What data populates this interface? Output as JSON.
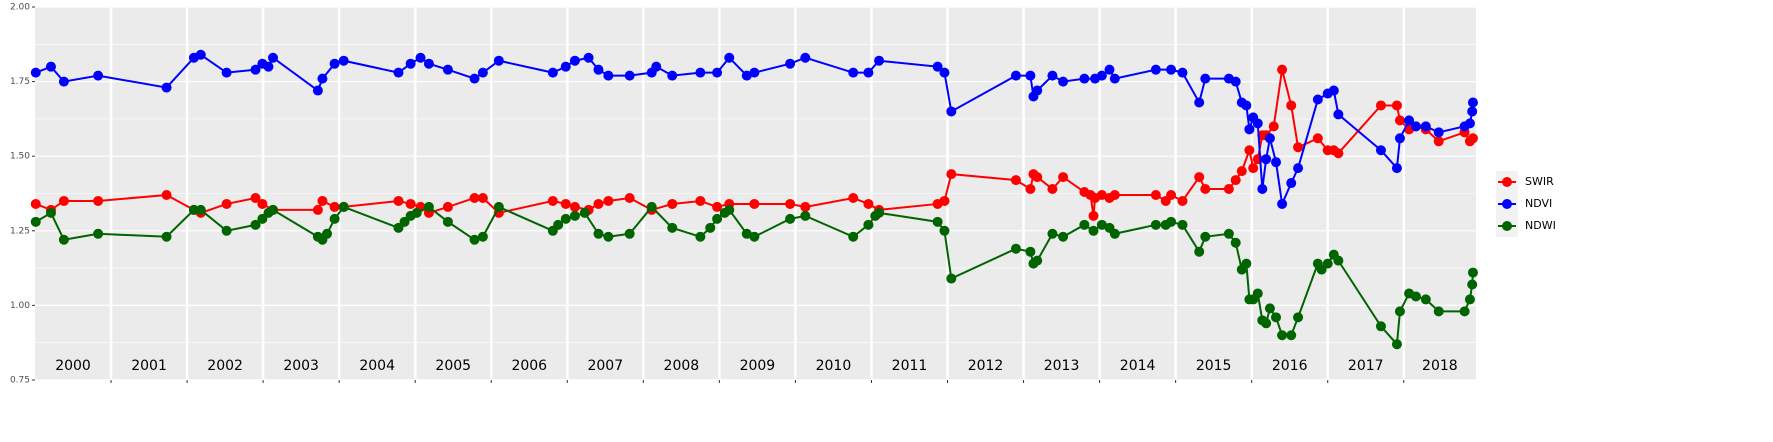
{
  "chart_data": {
    "type": "line",
    "categories": [
      "2000",
      "2001",
      "2002",
      "2003",
      "2004",
      "2005",
      "2006",
      "2007",
      "2008",
      "2009",
      "2010",
      "2011",
      "2012",
      "2013",
      "2014",
      "2015",
      "2016",
      "2017",
      "2018"
    ],
    "xlim": [
      2000,
      2018.95
    ],
    "ylim": [
      0.75,
      2.0
    ],
    "yticks": [
      0.75,
      {
        "value": 1.0,
        "label": "1.00"
      },
      1.25,
      {
        "value": 1.5,
        "label": "1.50"
      },
      1.75,
      {
        "value": 2.0,
        "label": "2.00"
      }
    ],
    "grid": true,
    "legend": "right",
    "series": [
      {
        "name": "SWIR",
        "color": "#ff0000",
        "x": [
          2000.01,
          2000.21,
          2000.38,
          2000.83,
          2001.73,
          2002.09,
          2002.18,
          2002.52,
          2002.9,
          2002.99,
          2003.13,
          2003.72,
          2003.78,
          2003.94,
          2004.06,
          2004.78,
          2004.94,
          2005.07,
          2005.18,
          2005.43,
          2005.78,
          2005.89,
          2006.1,
          2006.81,
          2006.98,
          2007.1,
          2007.28,
          2007.41,
          2007.54,
          2007.82,
          2008.11,
          2008.38,
          2008.75,
          2008.97,
          2009.13,
          2009.46,
          2009.93,
          2010.13,
          2010.76,
          2010.96,
          2011.1,
          2011.87,
          2011.96,
          2012.05,
          2012.9,
          2013.09,
          2013.13,
          2013.18,
          2013.38,
          2013.52,
          2013.8,
          2013.88,
          2013.92,
          2013.94,
          2014.03,
          2014.13,
          2014.2,
          2014.74,
          2014.87,
          2014.94,
          2015.09,
          2015.31,
          2015.39,
          2015.7,
          2015.79,
          2015.87,
          2015.97,
          2016.02,
          2016.08,
          2016.14,
          2016.19,
          2016.29,
          2016.4,
          2016.52,
          2016.61,
          2016.87,
          2017.0,
          2017.08,
          2017.14,
          2017.7,
          2017.91,
          2017.95,
          2018.07,
          2018.16,
          2018.29,
          2018.46,
          2018.8,
          2018.87,
          2018.91
        ],
        "values": [
          1.34,
          1.32,
          1.35,
          1.35,
          1.37,
          1.32,
          1.31,
          1.34,
          1.36,
          1.34,
          1.32,
          1.32,
          1.35,
          1.33,
          1.33,
          1.35,
          1.34,
          1.33,
          1.31,
          1.33,
          1.36,
          1.36,
          1.31,
          1.35,
          1.34,
          1.33,
          1.32,
          1.34,
          1.35,
          1.36,
          1.32,
          1.34,
          1.35,
          1.33,
          1.34,
          1.34,
          1.34,
          1.33,
          1.36,
          1.34,
          1.32,
          1.34,
          1.35,
          1.44,
          1.42,
          1.39,
          1.44,
          1.43,
          1.39,
          1.43,
          1.38,
          1.37,
          1.3,
          1.36,
          1.37,
          1.36,
          1.37,
          1.37,
          1.35,
          1.37,
          1.35,
          1.43,
          1.39,
          1.39,
          1.42,
          1.45,
          1.52,
          1.46,
          1.49,
          1.57,
          1.57,
          1.6,
          1.79,
          1.67,
          1.53,
          1.56,
          1.52,
          1.52,
          1.51,
          1.67,
          1.67,
          1.62,
          1.59,
          1.6,
          1.59,
          1.55,
          1.58,
          1.55,
          1.56
        ]
      },
      {
        "name": "NDVI",
        "color": "#0000ff",
        "x": [
          2000.01,
          2000.21,
          2000.38,
          2000.83,
          2001.73,
          2002.09,
          2002.18,
          2002.52,
          2002.9,
          2002.99,
          2003.07,
          2003.13,
          2003.72,
          2003.78,
          2003.94,
          2004.06,
          2004.78,
          2004.94,
          2005.07,
          2005.18,
          2005.43,
          2005.78,
          2005.89,
          2006.1,
          2006.81,
          2006.98,
          2007.1,
          2007.28,
          2007.41,
          2007.54,
          2007.82,
          2008.11,
          2008.17,
          2008.38,
          2008.75,
          2008.97,
          2009.13,
          2009.36,
          2009.46,
          2009.93,
          2010.13,
          2010.76,
          2010.96,
          2011.1,
          2011.87,
          2011.96,
          2012.05,
          2012.9,
          2013.09,
          2013.13,
          2013.18,
          2013.38,
          2013.52,
          2013.8,
          2013.94,
          2014.03,
          2014.13,
          2014.2,
          2014.74,
          2014.94,
          2015.09,
          2015.31,
          2015.39,
          2015.7,
          2015.79,
          2015.87,
          2015.93,
          2015.97,
          2016.02,
          2016.08,
          2016.14,
          2016.19,
          2016.24,
          2016.32,
          2016.4,
          2016.52,
          2016.61,
          2016.87,
          2017.0,
          2017.08,
          2017.14,
          2017.7,
          2017.91,
          2017.95,
          2018.07,
          2018.16,
          2018.29,
          2018.46,
          2018.8,
          2018.87,
          2018.9,
          2018.91
        ],
        "values": [
          1.78,
          1.8,
          1.75,
          1.77,
          1.73,
          1.83,
          1.84,
          1.78,
          1.79,
          1.81,
          1.8,
          1.83,
          1.72,
          1.76,
          1.81,
          1.82,
          1.78,
          1.81,
          1.83,
          1.81,
          1.79,
          1.76,
          1.78,
          1.82,
          1.78,
          1.8,
          1.82,
          1.83,
          1.79,
          1.77,
          1.77,
          1.78,
          1.8,
          1.77,
          1.78,
          1.78,
          1.83,
          1.77,
          1.78,
          1.81,
          1.83,
          1.78,
          1.78,
          1.82,
          1.8,
          1.78,
          1.65,
          1.77,
          1.77,
          1.7,
          1.72,
          1.77,
          1.75,
          1.76,
          1.76,
          1.77,
          1.79,
          1.76,
          1.79,
          1.79,
          1.78,
          1.68,
          1.76,
          1.76,
          1.75,
          1.68,
          1.67,
          1.59,
          1.63,
          1.61,
          1.39,
          1.49,
          1.56,
          1.48,
          1.34,
          1.41,
          1.46,
          1.69,
          1.71,
          1.72,
          1.64,
          1.52,
          1.46,
          1.56,
          1.62,
          1.6,
          1.6,
          1.58,
          1.6,
          1.61,
          1.65,
          1.68
        ]
      },
      {
        "name": "NDWI",
        "color": "#006400",
        "x": [
          2000.01,
          2000.21,
          2000.38,
          2000.83,
          2001.73,
          2002.09,
          2002.18,
          2002.52,
          2002.9,
          2002.99,
          2003.07,
          2003.13,
          2003.72,
          2003.78,
          2003.84,
          2003.94,
          2004.06,
          2004.78,
          2004.86,
          2004.94,
          2005.02,
          2005.18,
          2005.43,
          2005.78,
          2005.89,
          2006.1,
          2006.81,
          2006.88,
          2006.98,
          2007.1,
          2007.23,
          2007.41,
          2007.54,
          2007.82,
          2008.11,
          2008.38,
          2008.75,
          2008.88,
          2008.97,
          2009.07,
          2009.13,
          2009.36,
          2009.46,
          2009.93,
          2010.13,
          2010.76,
          2010.96,
          2011.05,
          2011.1,
          2011.87,
          2011.96,
          2012.05,
          2012.9,
          2013.09,
          2013.13,
          2013.18,
          2013.38,
          2013.52,
          2013.8,
          2013.92,
          2014.03,
          2014.13,
          2014.2,
          2014.74,
          2014.87,
          2014.94,
          2015.09,
          2015.31,
          2015.39,
          2015.7,
          2015.79,
          2015.87,
          2015.93,
          2015.97,
          2016.02,
          2016.08,
          2016.14,
          2016.19,
          2016.24,
          2016.32,
          2016.4,
          2016.52,
          2016.61,
          2016.87,
          2016.92,
          2017.0,
          2017.08,
          2017.14,
          2017.7,
          2017.91,
          2017.95,
          2018.07,
          2018.16,
          2018.29,
          2018.46,
          2018.8,
          2018.87,
          2018.9,
          2018.91
        ],
        "values": [
          1.28,
          1.31,
          1.22,
          1.24,
          1.23,
          1.32,
          1.32,
          1.25,
          1.27,
          1.29,
          1.31,
          1.32,
          1.23,
          1.22,
          1.24,
          1.29,
          1.33,
          1.26,
          1.28,
          1.3,
          1.31,
          1.33,
          1.28,
          1.22,
          1.23,
          1.33,
          1.25,
          1.27,
          1.29,
          1.3,
          1.31,
          1.24,
          1.23,
          1.24,
          1.33,
          1.26,
          1.23,
          1.26,
          1.29,
          1.31,
          1.32,
          1.24,
          1.23,
          1.29,
          1.3,
          1.23,
          1.27,
          1.3,
          1.31,
          1.28,
          1.25,
          1.09,
          1.19,
          1.18,
          1.14,
          1.15,
          1.24,
          1.23,
          1.27,
          1.25,
          1.27,
          1.26,
          1.24,
          1.27,
          1.27,
          1.28,
          1.27,
          1.18,
          1.23,
          1.24,
          1.21,
          1.12,
          1.14,
          1.02,
          1.02,
          1.04,
          0.95,
          0.94,
          0.99,
          0.96,
          0.9,
          0.9,
          0.96,
          1.14,
          1.12,
          1.14,
          1.17,
          1.15,
          0.93,
          0.87,
          0.98,
          1.04,
          1.03,
          1.02,
          0.98,
          0.98,
          1.02,
          1.07,
          1.11
        ]
      }
    ]
  }
}
